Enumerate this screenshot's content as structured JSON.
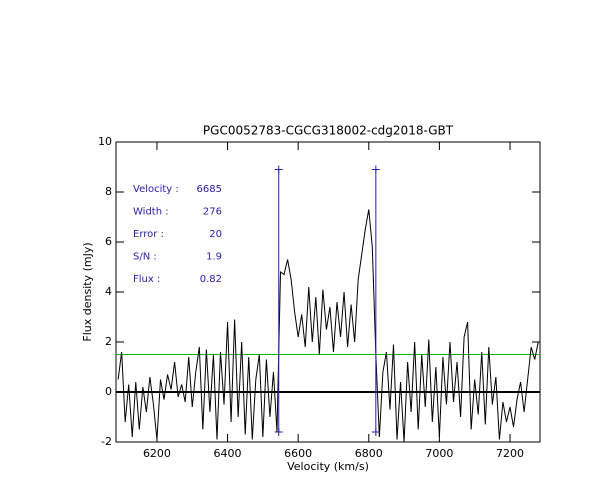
{
  "chart_data": {
    "type": "line",
    "title": "PGC0052783-CGCG318002-cdg2018-GBT",
    "xlabel": "Velocity (km/s)",
    "ylabel": "Flux density (mJy)",
    "xlim": [
      6084,
      7285
    ],
    "ylim": [
      -2,
      10
    ],
    "xticks": [
      6200,
      6400,
      6600,
      6800,
      7000,
      7200
    ],
    "yticks": [
      -2,
      0,
      2,
      4,
      6,
      8,
      10
    ],
    "color": "#000000",
    "x": [
      6090,
      6100,
      6110,
      6120,
      6130,
      6140,
      6150,
      6160,
      6170,
      6180,
      6190,
      6200,
      6210,
      6220,
      6230,
      6240,
      6250,
      6260,
      6270,
      6280,
      6290,
      6300,
      6310,
      6320,
      6330,
      6340,
      6350,
      6360,
      6370,
      6380,
      6390,
      6400,
      6410,
      6420,
      6430,
      6440,
      6450,
      6460,
      6470,
      6480,
      6490,
      6500,
      6510,
      6520,
      6530,
      6540,
      6550,
      6560,
      6570,
      6580,
      6590,
      6600,
      6610,
      6620,
      6630,
      6640,
      6650,
      6660,
      6670,
      6680,
      6690,
      6700,
      6710,
      6720,
      6730,
      6740,
      6750,
      6760,
      6770,
      6780,
      6790,
      6800,
      6810,
      6820,
      6830,
      6840,
      6850,
      6860,
      6870,
      6880,
      6890,
      6900,
      6910,
      6920,
      6930,
      6940,
      6950,
      6960,
      6970,
      6980,
      6990,
      7000,
      7010,
      7020,
      7030,
      7040,
      7050,
      7060,
      7070,
      7080,
      7090,
      7100,
      7110,
      7120,
      7130,
      7140,
      7150,
      7160,
      7170,
      7180,
      7190,
      7200,
      7210,
      7220,
      7230,
      7240,
      7250,
      7260,
      7270,
      7280
    ],
    "values": [
      0.5,
      1.6,
      -1.2,
      0.3,
      -1.8,
      0.4,
      -1.5,
      0.2,
      -0.8,
      0.6,
      -0.5,
      -1.9,
      0.5,
      -0.3,
      0.7,
      0.1,
      1.2,
      -0.2,
      0.3,
      -0.4,
      1.4,
      -0.6,
      0.8,
      1.8,
      -1.5,
      1.7,
      -0.8,
      1.5,
      -1.9,
      1.6,
      -0.5,
      2.8,
      -1.2,
      2.9,
      -1.0,
      2.0,
      -1.7,
      1.4,
      -1.9,
      0.5,
      1.5,
      -1.8,
      1.3,
      -1.0,
      0.8,
      -1.6,
      4.8,
      4.7,
      5.3,
      4.5,
      3.2,
      2.2,
      3.1,
      1.8,
      4.2,
      2.0,
      3.8,
      1.5,
      4.1,
      2.5,
      3.4,
      1.6,
      3.6,
      2.2,
      4.0,
      1.8,
      3.5,
      2.0,
      4.5,
      5.5,
      6.5,
      7.3,
      5.8,
      1.5,
      -1.8,
      0.8,
      1.6,
      -0.7,
      1.9,
      -1.9,
      0.4,
      -2.0,
      1.2,
      -0.8,
      2.0,
      -1.5,
      1.5,
      -0.6,
      2.1,
      -1.2,
      1.0,
      -1.8,
      1.4,
      -0.5,
      2.0,
      -0.4,
      1.2,
      -1.0,
      2.2,
      2.8,
      -1.5,
      0.5,
      -0.9,
      1.6,
      -1.3,
      1.8,
      -0.5,
      0.6,
      -1.9,
      -0.4,
      -1.2,
      -0.6,
      -1.4,
      -0.3,
      0.4,
      -0.8,
      0.5,
      1.8,
      1.3,
      2.0
    ],
    "reference_lines": [
      {
        "value": 0,
        "color": "#000000"
      },
      {
        "value": 1.5,
        "color": "#00c000"
      }
    ],
    "window": {
      "x": [
        6545,
        6820
      ],
      "top": 8.9,
      "bottom": -1.6,
      "color": "#2a20b0"
    },
    "annotations": [
      {
        "label": "Velocity :",
        "value": 6685
      },
      {
        "label": "Width :",
        "value": 276
      },
      {
        "label": "Error :",
        "value": 20
      },
      {
        "label": "S/N :",
        "value": 1.9
      },
      {
        "label": "Flux :",
        "value": 0.82
      }
    ],
    "annotation_color": "#2a20b0"
  }
}
